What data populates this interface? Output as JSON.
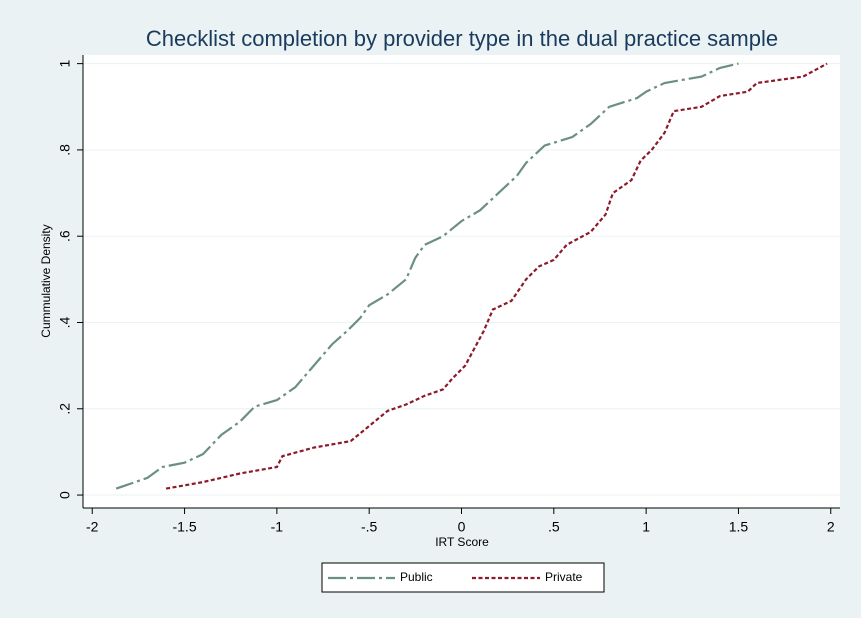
{
  "chart_data": {
    "type": "line",
    "title": "Checklist completion by provider type in the dual practice sample",
    "x_label": "IRT Score",
    "y_label": "Cummulative Density",
    "xlim": [
      -2.05,
      2.05
    ],
    "ylim": [
      -0.03,
      1.02
    ],
    "xticks": [
      -2,
      -1.5,
      -1,
      {
        "value": -0.5,
        "label": "-.5"
      },
      0,
      {
        "value": 0.5,
        "label": ".5"
      },
      1,
      1.5,
      2
    ],
    "yticks": [
      0,
      {
        "value": 0.2,
        "label": ".2"
      },
      {
        "value": 0.4,
        "label": ".4"
      },
      {
        "value": 0.6,
        "label": ".6"
      },
      {
        "value": 0.8,
        "label": ".8"
      },
      1
    ],
    "grid": true,
    "legend": "bottom",
    "series": [
      {
        "name": "Public",
        "color": "#6b9080",
        "dash": "long-dash-dot",
        "x": [
          -1.87,
          -1.7,
          -1.62,
          -1.5,
          -1.4,
          -1.3,
          -1.2,
          -1.12,
          -1.0,
          -0.9,
          -0.8,
          -0.7,
          -0.62,
          -0.55,
          -0.5,
          -0.4,
          -0.3,
          -0.25,
          -0.2,
          -0.1,
          0,
          0.1,
          0.2,
          0.3,
          0.35,
          0.45,
          0.6,
          0.7,
          0.8,
          0.95,
          1.0,
          1.1,
          1.3,
          1.4,
          1.5
        ],
        "values": [
          0.015,
          0.04,
          0.065,
          0.075,
          0.095,
          0.14,
          0.17,
          0.205,
          0.22,
          0.25,
          0.3,
          0.35,
          0.38,
          0.41,
          0.44,
          0.465,
          0.5,
          0.55,
          0.58,
          0.6,
          0.635,
          0.66,
          0.7,
          0.74,
          0.77,
          0.81,
          0.83,
          0.86,
          0.9,
          0.92,
          0.935,
          0.955,
          0.97,
          0.99,
          1.0
        ]
      },
      {
        "name": "Private",
        "color": "#8b1a2b",
        "dash": "short-dash",
        "x": [
          -1.6,
          -1.4,
          -1.2,
          -1.0,
          -0.97,
          -0.8,
          -0.6,
          -0.5,
          -0.4,
          -0.3,
          -0.2,
          -0.1,
          -0.05,
          0.02,
          0.07,
          0.12,
          0.17,
          0.27,
          0.35,
          0.42,
          0.5,
          0.57,
          0.7,
          0.78,
          0.82,
          0.92,
          0.97,
          1.03,
          1.1,
          1.15,
          1.3,
          1.4,
          1.55,
          1.6,
          1.85,
          1.98
        ],
        "values": [
          0.015,
          0.03,
          0.05,
          0.065,
          0.09,
          0.11,
          0.125,
          0.16,
          0.195,
          0.21,
          0.23,
          0.245,
          0.27,
          0.3,
          0.34,
          0.38,
          0.43,
          0.45,
          0.5,
          0.53,
          0.545,
          0.58,
          0.61,
          0.65,
          0.7,
          0.73,
          0.775,
          0.8,
          0.84,
          0.89,
          0.9,
          0.925,
          0.935,
          0.955,
          0.97,
          1.0
        ]
      }
    ]
  }
}
